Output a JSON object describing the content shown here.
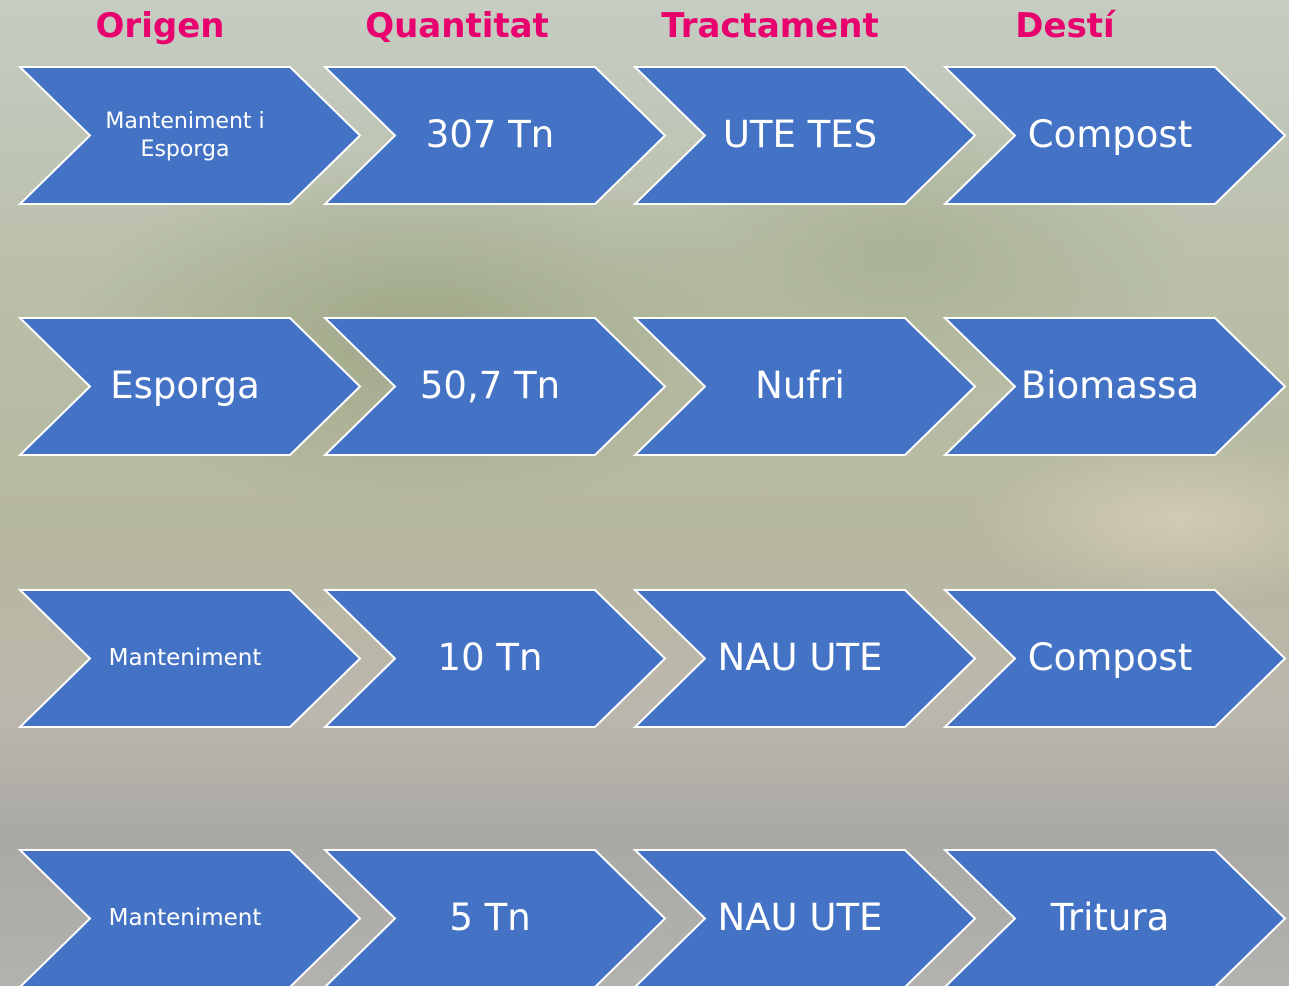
{
  "headers": [
    "Origen",
    "Quantitat",
    "Tractament",
    "Destí"
  ],
  "rows": [
    [
      "Manteniment i Esporga",
      "307 Tn",
      "UTE TES",
      "Compost"
    ],
    [
      "Esporga",
      "50,7 Tn",
      "Nufri",
      "Biomassa"
    ],
    [
      "Manteniment",
      "10 Tn",
      "NAU UTE",
      "Compost"
    ],
    [
      "Manteniment",
      "5 Tn",
      "NAU UTE",
      "Tritura"
    ]
  ]
}
